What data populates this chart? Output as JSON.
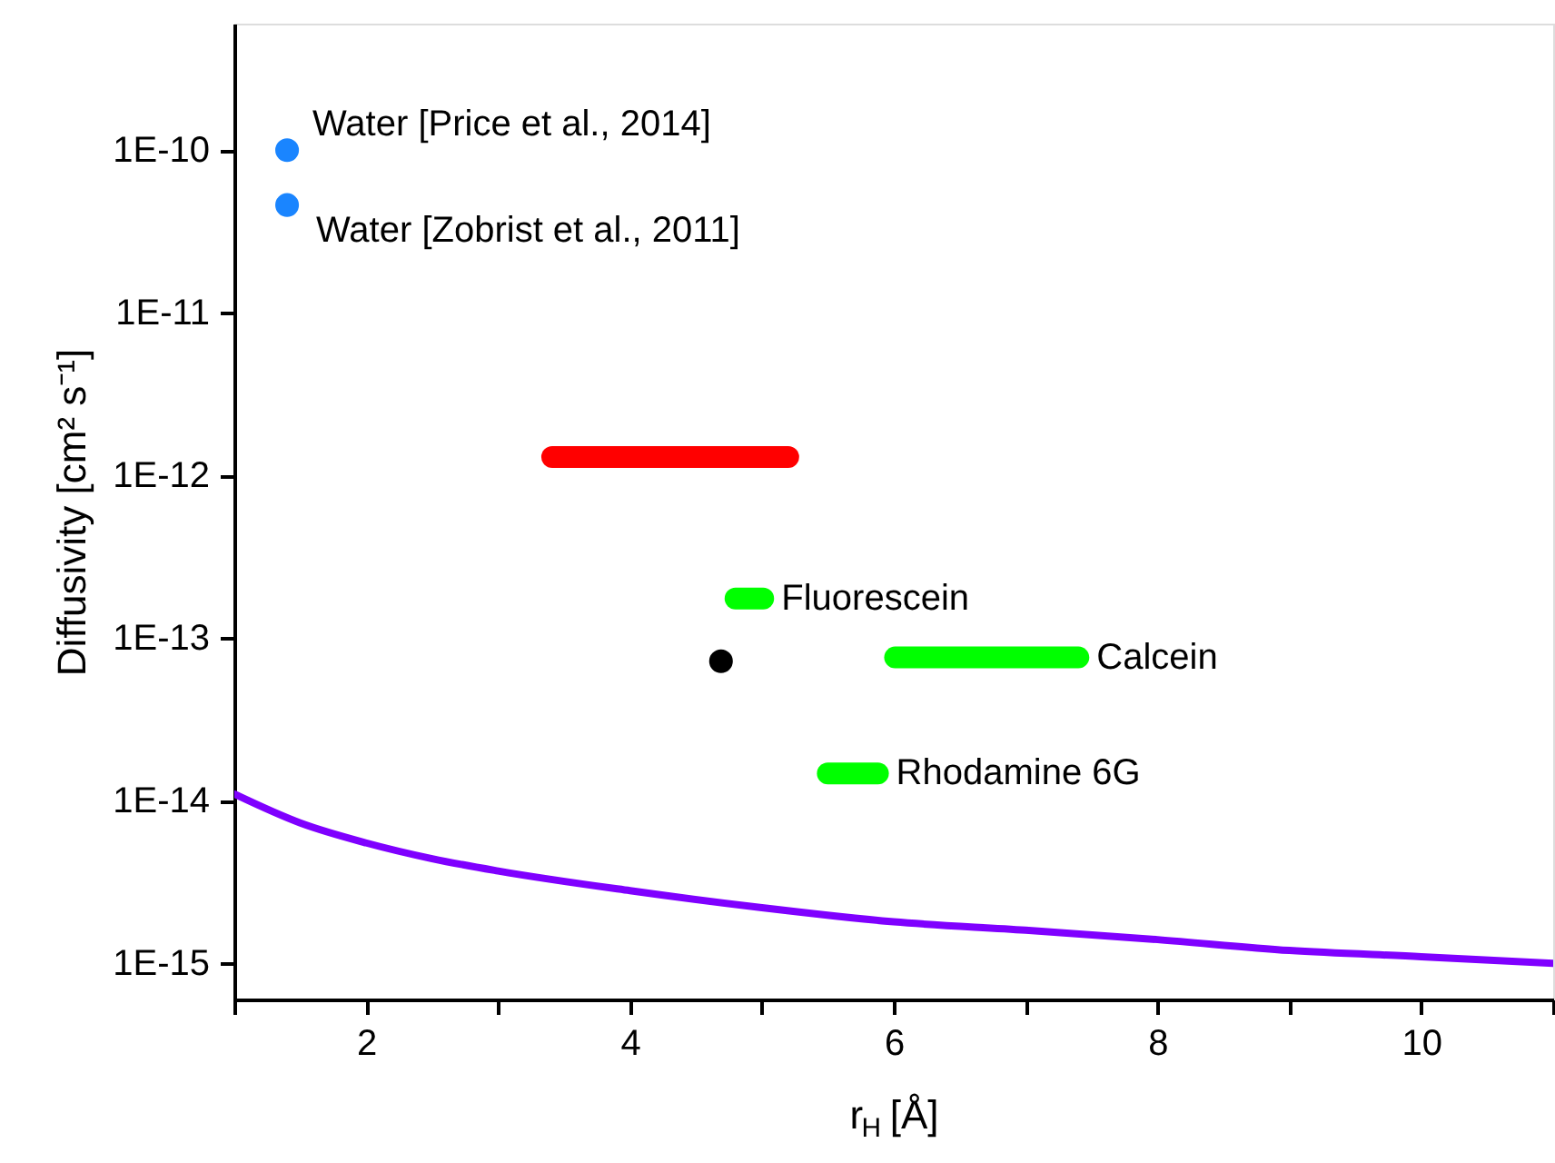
{
  "chart_data": {
    "type": "scatter",
    "xlabel": "r$_{H}$ [Å]",
    "ylabel": "Diffusivity [cm² s⁻¹]",
    "log": "y",
    "grid": false,
    "xlim": [
      1,
      11
    ],
    "xticks": [
      {
        "value": 1,
        "label": null
      },
      2,
      {
        "value": 3,
        "label": null
      },
      4,
      {
        "value": 5,
        "label": null
      },
      6,
      {
        "value": 7,
        "label": null
      },
      8,
      {
        "value": 9,
        "label": null
      },
      10,
      {
        "value": 11,
        "label": null
      }
    ],
    "ylim": [
      6e-16,
      6e-10
    ],
    "yticks": [
      {
        "value": 1e-15,
        "label": "1E-15"
      },
      {
        "value": 1e-14,
        "label": "1E-14"
      },
      {
        "value": 1e-13,
        "label": "1E-13"
      },
      {
        "value": 1e-12,
        "label": "1E-12"
      },
      {
        "value": 1e-11,
        "label": "1E-11"
      },
      {
        "value": 1e-10,
        "label": "1E-10"
      }
    ],
    "series": [
      {
        "name": "Water [Price et al., 2014]",
        "marker": "circle",
        "color": "#1a85ff",
        "x": [
          1.4
        ],
        "values": [
          1e-10
        ]
      },
      {
        "name": "Water [Zobrist et al., 2011]",
        "marker": "circle",
        "color": "#1a85ff",
        "x": [
          1.4
        ],
        "values": [
          4.6e-11
        ]
      },
      {
        "type": "line",
        "color": "#ff0000",
        "x": [
          3.41,
          5.2
        ],
        "values": [
          1.3e-12,
          1.3e-12
        ]
      },
      {
        "name": "Fluorescein",
        "type": "line",
        "color": "#00ff00",
        "x": [
          4.8,
          5.01
        ],
        "values": [
          1.75e-13,
          1.75e-13
        ]
      },
      {
        "marker": "circle",
        "color": "#000000",
        "x": [
          4.69
        ],
        "values": [
          7.2e-14
        ]
      },
      {
        "name": "Calcein",
        "type": "line",
        "color": "#00ff00",
        "x": [
          6.01,
          7.4
        ],
        "values": [
          7.6e-14,
          7.6e-14
        ]
      },
      {
        "name": "Rhodamine 6G",
        "type": "line",
        "color": "#00ff00",
        "x": [
          5.5,
          5.88
        ],
        "values": [
          1.47e-14,
          1.47e-14
        ]
      },
      {
        "type": "line",
        "color": "#7f00ff",
        "x": [
          1,
          1.5,
          2,
          2.5,
          3,
          4,
          5,
          6,
          7,
          8,
          9,
          10,
          11
        ],
        "values": [
          1.1e-14,
          7.3e-15,
          5.5e-15,
          4.4e-15,
          3.7e-15,
          2.8e-15,
          2.2e-15,
          1.8e-15,
          1.6e-15,
          1.4e-15,
          1.2e-15,
          1.1e-15,
          1e-15
        ]
      }
    ]
  }
}
